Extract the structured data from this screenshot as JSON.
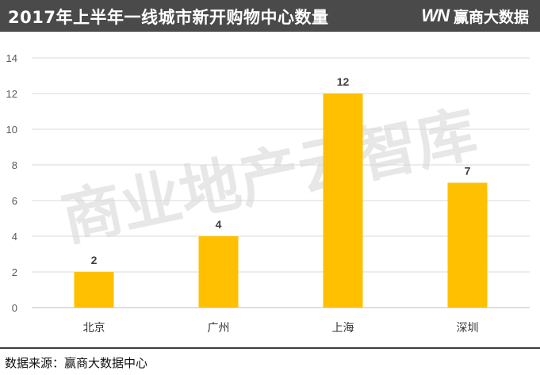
{
  "header": {
    "title": "2017年上半年一线城市新开购物中心数量",
    "brand_mark": "WN",
    "brand_name": "赢商大数据"
  },
  "watermark": "商业地产云智库",
  "footer": {
    "source": "数据来源：赢商大数据中心"
  },
  "colors": {
    "header_bg": "#4a4a4a",
    "bar": "#fec000",
    "grid": "#d9d9d9",
    "axis_text": "#595959",
    "label_text": "#404040",
    "watermark": "#d4d4d4"
  },
  "chart_data": {
    "type": "bar",
    "categories": [
      "北京",
      "广州",
      "上海",
      "深圳"
    ],
    "values": [
      2,
      4,
      12,
      7
    ],
    "title": "2017年上半年一线城市新开购物中心数量",
    "xlabel": "",
    "ylabel": "",
    "ylim": [
      0,
      14
    ],
    "yticks": [
      0,
      2,
      4,
      6,
      8,
      10,
      12,
      14
    ],
    "grid": true,
    "legend": "none",
    "data_labels": true
  }
}
